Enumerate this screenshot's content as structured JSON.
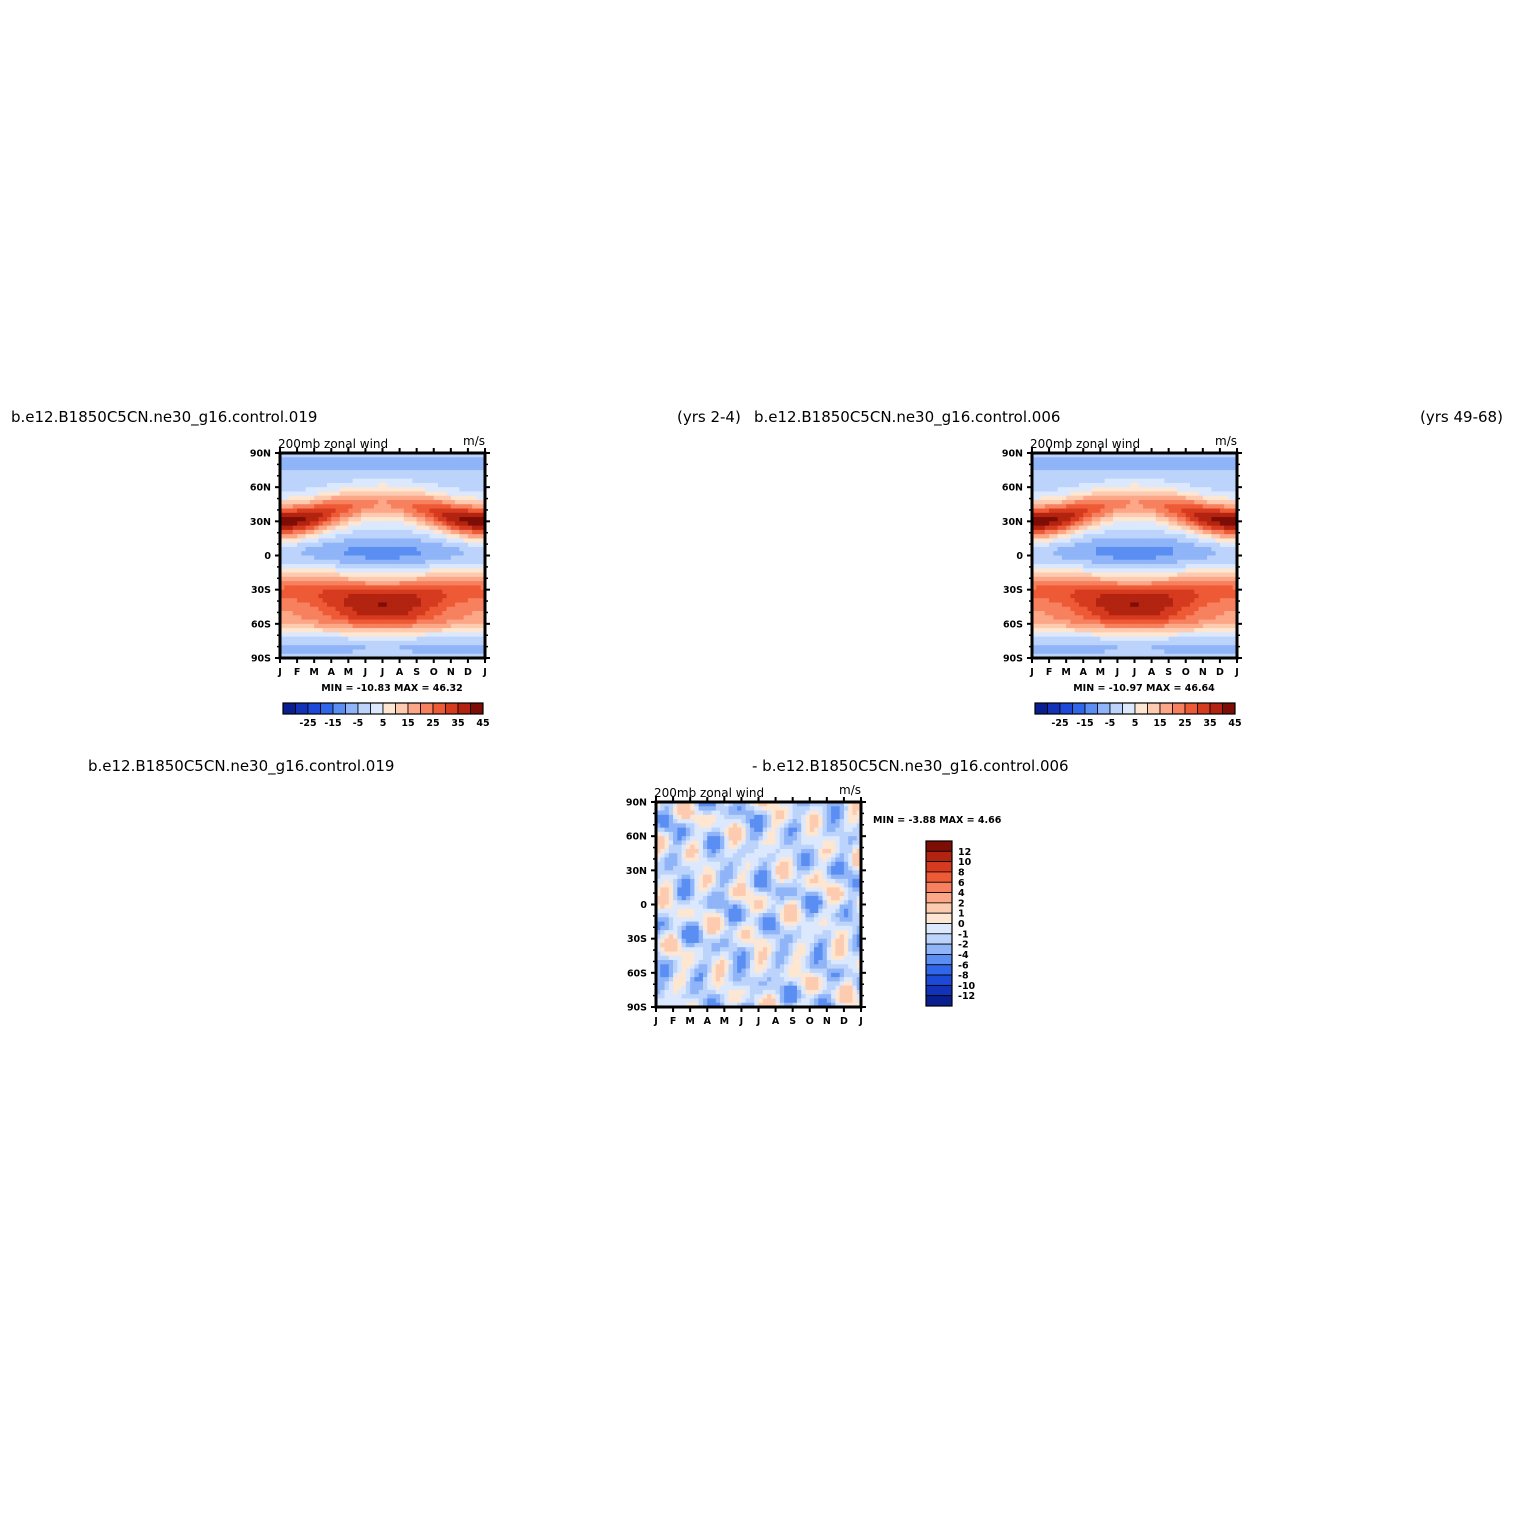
{
  "titles": {
    "top_left": "b.e12.B1850C5CN.ne30_g16.control.019",
    "top_left_years": "(yrs 2-4)",
    "top_right": "b.e12.B1850C5CN.ne30_g16.control.006",
    "top_right_years": "(yrs 49-68)",
    "bottom_left": "b.e12.B1850C5CN.ne30_g16.control.019",
    "bottom_right": "- b.e12.B1850C5CN.ne30_g16.control.006"
  },
  "colors": {
    "blue_ramp": [
      "#0a1f8f",
      "#1233b8",
      "#1d49d8",
      "#2f66ea",
      "#5b8ef2",
      "#8fb4f7",
      "#bcd4fb",
      "#dbe8fd"
    ],
    "red_ramp": [
      "#fde6d2",
      "#fdcbb0",
      "#fca787",
      "#f7805e",
      "#ee5a36",
      "#d63a1f",
      "#b22310",
      "#7e0d06"
    ],
    "white": "#ffffff"
  },
  "chart_data": [
    {
      "type": "heatmap",
      "panel": "top-left",
      "field_label": "200mb zonal wind",
      "units": "m/s",
      "x_ticks": [
        "J",
        "F",
        "M",
        "A",
        "M",
        "J",
        "J",
        "A",
        "S",
        "O",
        "N",
        "D",
        "J"
      ],
      "y_ticks": [
        "90N",
        "60N",
        "30N",
        "0",
        "30S",
        "60S",
        "90S"
      ],
      "ylim": [
        -90,
        90
      ],
      "stats": "MIN = -10.83 MAX = 46.32",
      "legend_labels": [
        "-25",
        "-15",
        "-5",
        "5",
        "15",
        "25",
        "35",
        "45"
      ],
      "levels": [
        -30,
        -25,
        -20,
        -15,
        -10,
        -5,
        0,
        5,
        10,
        15,
        20,
        25,
        30,
        35,
        40,
        45,
        50
      ],
      "nh_jet": {
        "lat": 30,
        "peak_winter": 45,
        "peak_summer": 22
      },
      "sh_jet": {
        "lat": -40,
        "peak_winter": 40,
        "peak_summer": 28
      },
      "easterlies": {
        "lat": 2,
        "peak": -10.5
      }
    },
    {
      "type": "heatmap",
      "panel": "top-right",
      "field_label": "200mb zonal wind",
      "units": "m/s",
      "x_ticks": [
        "J",
        "F",
        "M",
        "A",
        "M",
        "J",
        "J",
        "A",
        "S",
        "O",
        "N",
        "D",
        "J"
      ],
      "y_ticks": [
        "90N",
        "60N",
        "30N",
        "0",
        "30S",
        "60S",
        "90S"
      ],
      "ylim": [
        -90,
        90
      ],
      "stats": "MIN = -10.97 MAX = 46.64",
      "legend_labels": [
        "-25",
        "-15",
        "-5",
        "5",
        "15",
        "25",
        "35",
        "45"
      ],
      "levels": [
        -30,
        -25,
        -20,
        -15,
        -10,
        -5,
        0,
        5,
        10,
        15,
        20,
        25,
        30,
        35,
        40,
        45,
        50
      ],
      "nh_jet": {
        "lat": 30,
        "peak_winter": 45,
        "peak_summer": 22
      },
      "sh_jet": {
        "lat": -40,
        "peak_winter": 40,
        "peak_summer": 28
      },
      "easterlies": {
        "lat": 2,
        "peak": -10.8
      }
    },
    {
      "type": "heatmap",
      "panel": "bottom-difference",
      "field_label": "200mb zonal wind",
      "units": "m/s",
      "x_ticks": [
        "J",
        "F",
        "M",
        "A",
        "M",
        "J",
        "J",
        "A",
        "S",
        "O",
        "N",
        "D",
        "J"
      ],
      "y_ticks": [
        "90N",
        "60N",
        "30N",
        "0",
        "30S",
        "60S",
        "90S"
      ],
      "ylim": [
        -90,
        90
      ],
      "stats": "MIN =   -3.88 MAX =    4.66",
      "legend_labels": [
        "12",
        "10",
        "8",
        "6",
        "4",
        "2",
        "1",
        "0",
        "-1",
        "-2",
        "-4",
        "-6",
        "-8",
        "-10",
        "-12"
      ],
      "levels": [
        -12,
        -10,
        -8,
        -6,
        -4,
        -2,
        -1,
        0,
        1,
        2,
        4,
        6,
        8,
        10,
        12
      ]
    }
  ]
}
